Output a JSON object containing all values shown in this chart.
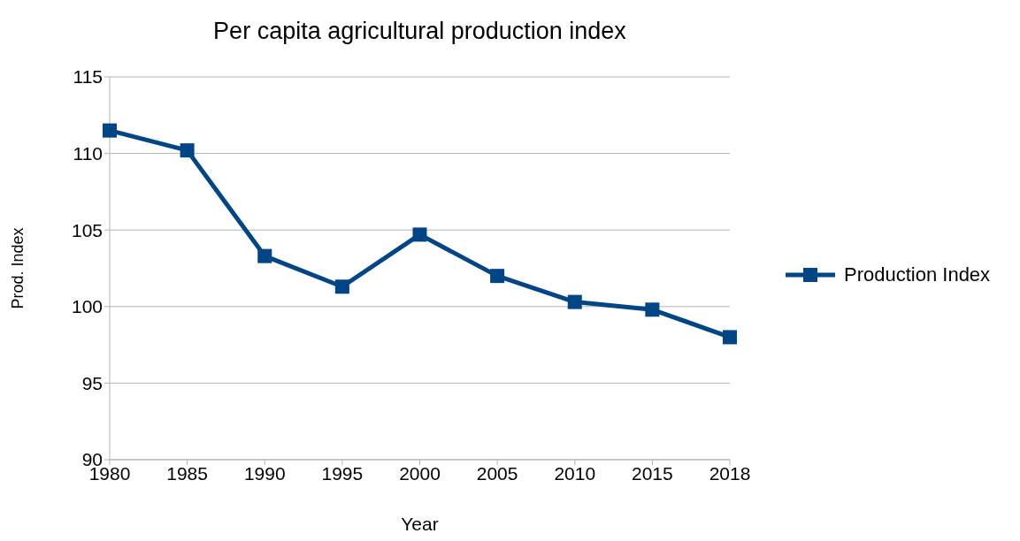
{
  "chart_data": {
    "type": "line",
    "title": "Per capita agricultural production index",
    "xlabel": "Year",
    "ylabel": "Prod. Index",
    "categories": [
      "1980",
      "1985",
      "1990",
      "1995",
      "2000",
      "2005",
      "2010",
      "2015",
      "2018"
    ],
    "series": [
      {
        "name": "Production Index",
        "color": "#004586",
        "values": [
          111.5,
          110.2,
          103.3,
          101.3,
          104.7,
          102.0,
          100.3,
          99.8,
          98.0
        ]
      }
    ],
    "ylim": [
      90,
      115
    ],
    "yticks": [
      90,
      95,
      100,
      105,
      110,
      115
    ],
    "grid": "y",
    "legend": "right",
    "marker": "square",
    "line_style": "solid"
  }
}
